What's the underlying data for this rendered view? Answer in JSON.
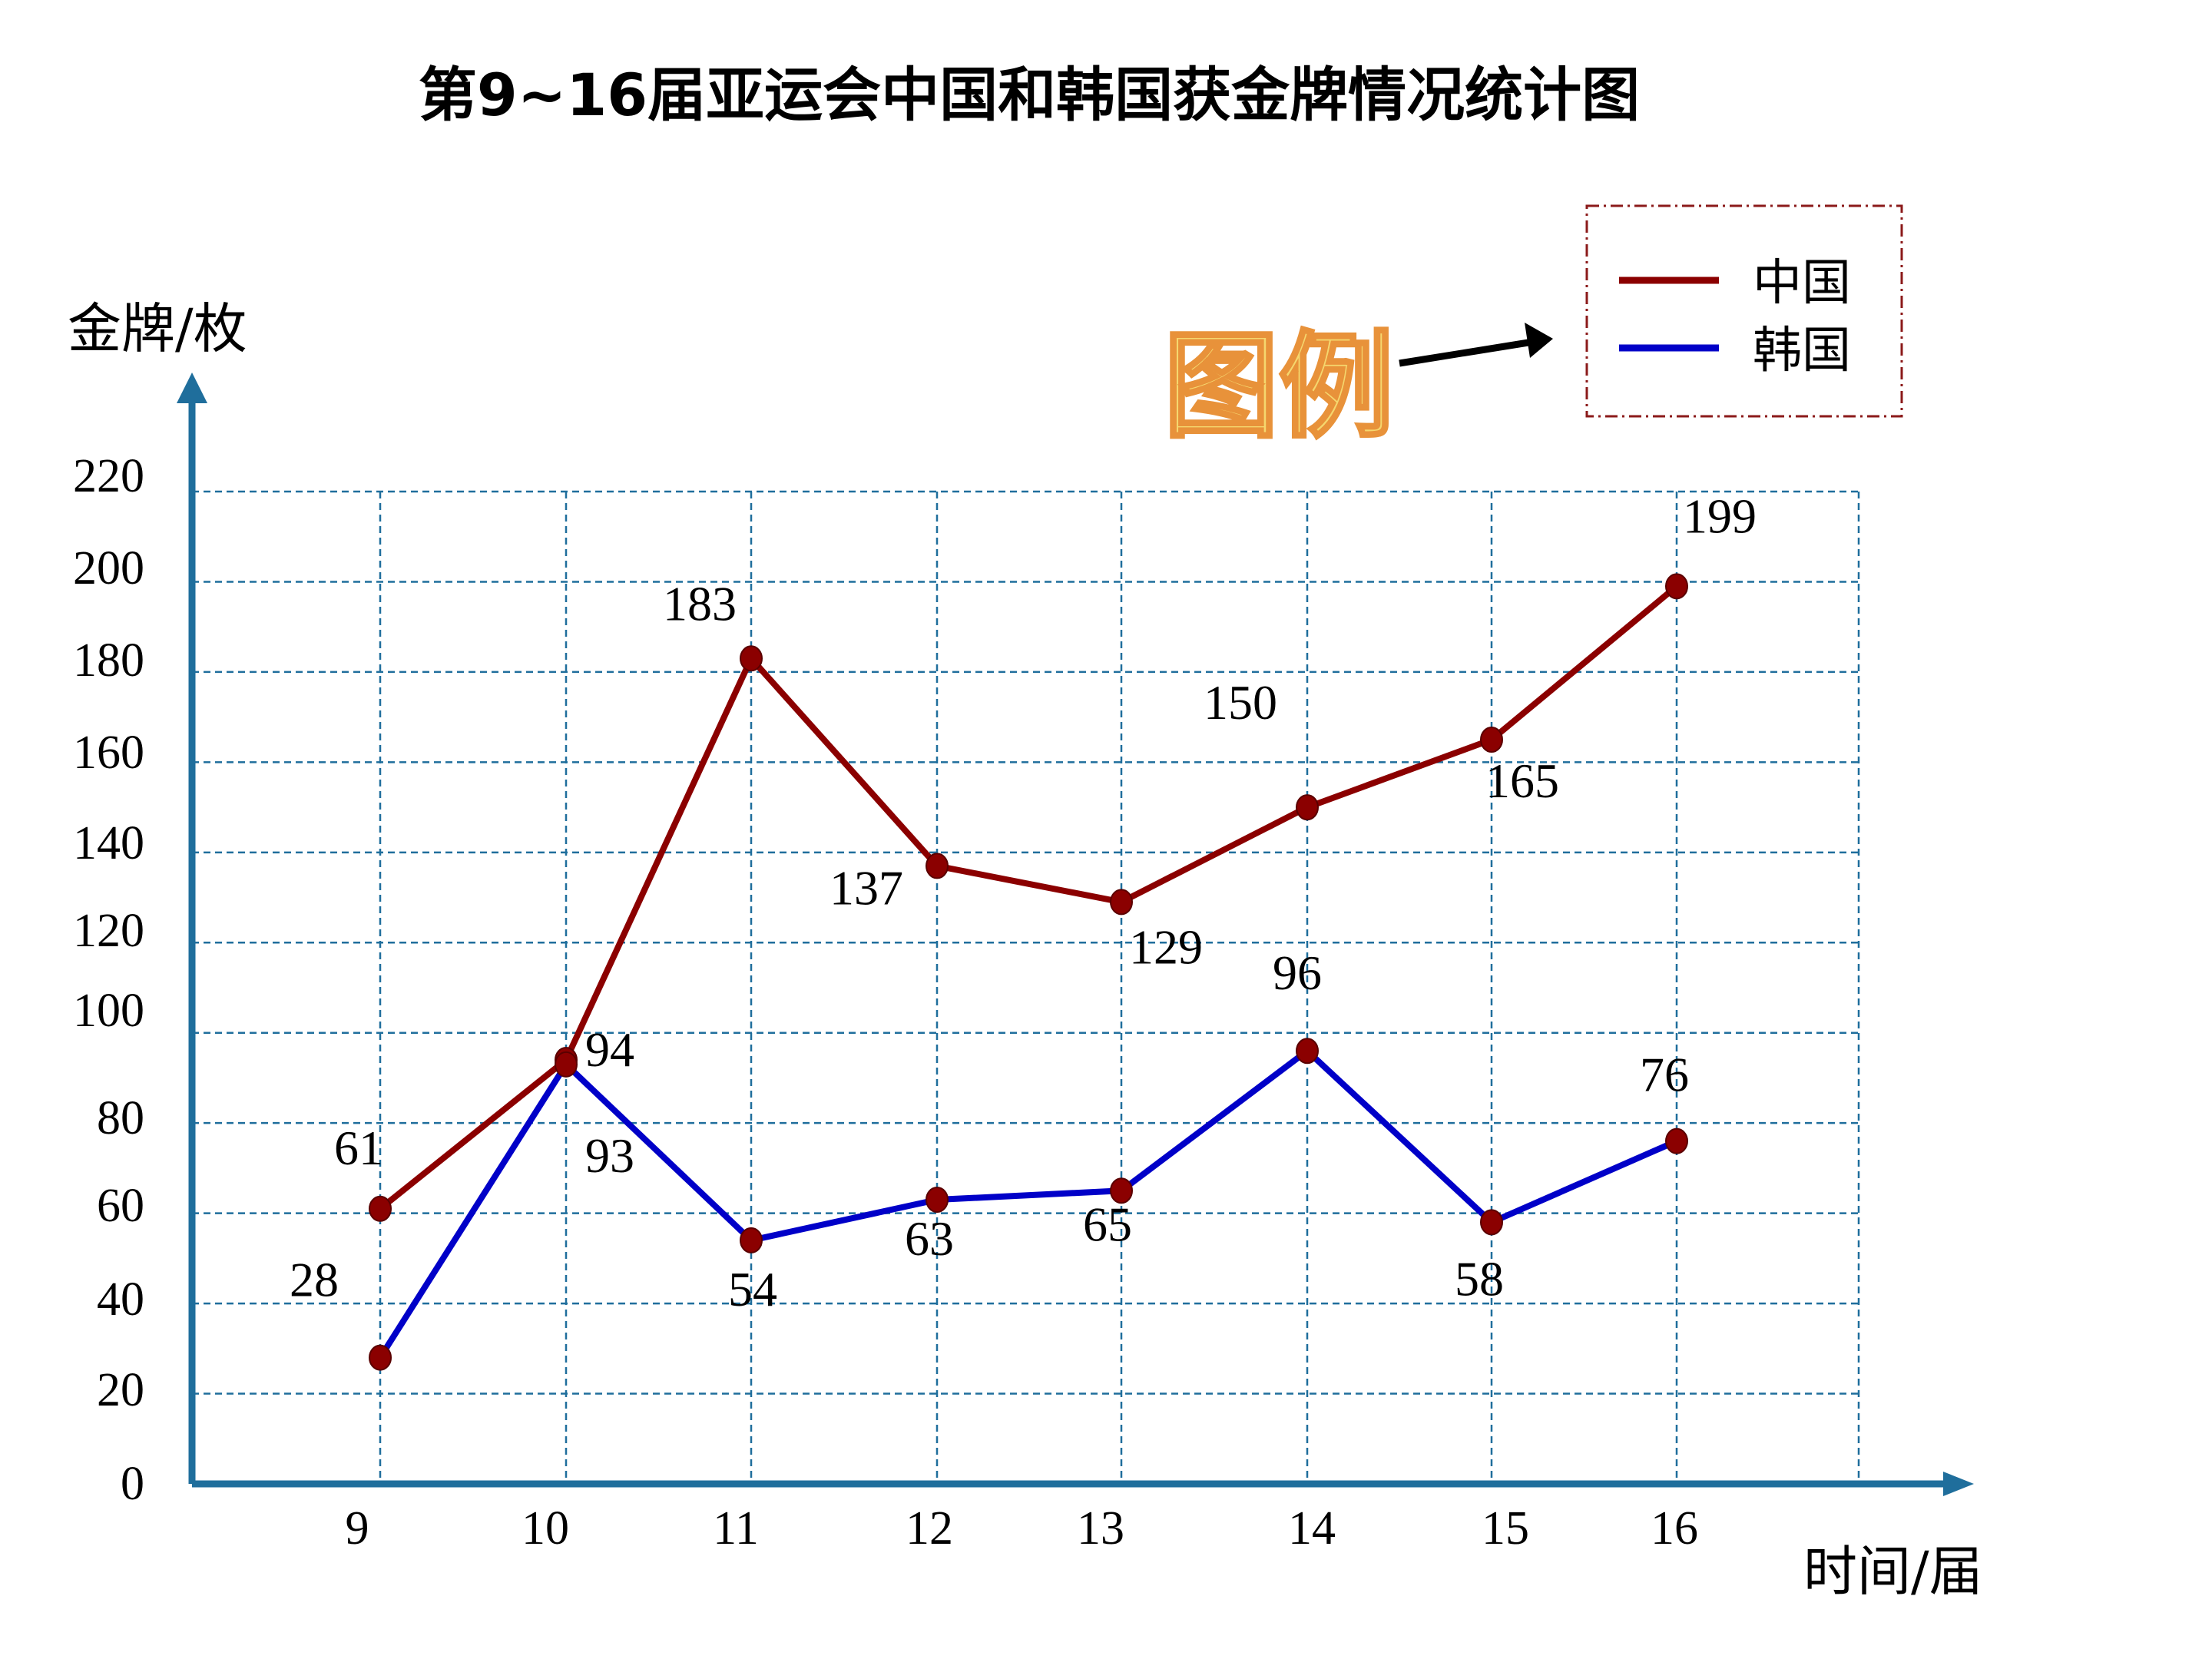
{
  "colors": {
    "china": "#8B0000",
    "korea": "#0000C8",
    "axis": "#1F6E9C",
    "grid": "#1F6E9C",
    "legend_border": "#8B1A1A",
    "tuli_fill": "#F5D76E",
    "tuli_stroke": "#E8923A"
  },
  "chart_data": {
    "type": "line",
    "title": "第9~16届亚运会中国和韩国获金牌情况统计图",
    "xlabel": "时间/届",
    "ylabel": "金牌/枚",
    "categories": [
      "9",
      "10",
      "11",
      "12",
      "13",
      "14",
      "15",
      "16"
    ],
    "yticks": [
      "0",
      "20",
      "40",
      "60",
      "80",
      "100",
      "120",
      "140",
      "160",
      "180",
      "200",
      "220"
    ],
    "ylim": [
      0,
      220
    ],
    "grid": true,
    "legend_title": "图例",
    "legend_position": "top-right",
    "series": [
      {
        "name": "中国",
        "key": "china",
        "values": [
          61,
          94,
          183,
          137,
          129,
          150,
          165,
          199
        ],
        "labels": [
          "61",
          "94",
          "183",
          "137",
          "129",
          "150",
          "165",
          "199"
        ]
      },
      {
        "name": "韩国",
        "key": "korea",
        "values": [
          28,
          93,
          54,
          63,
          65,
          96,
          58,
          76
        ],
        "labels": [
          "28",
          "93",
          "54",
          "63",
          "65",
          "96",
          "58",
          "76"
        ]
      }
    ]
  }
}
